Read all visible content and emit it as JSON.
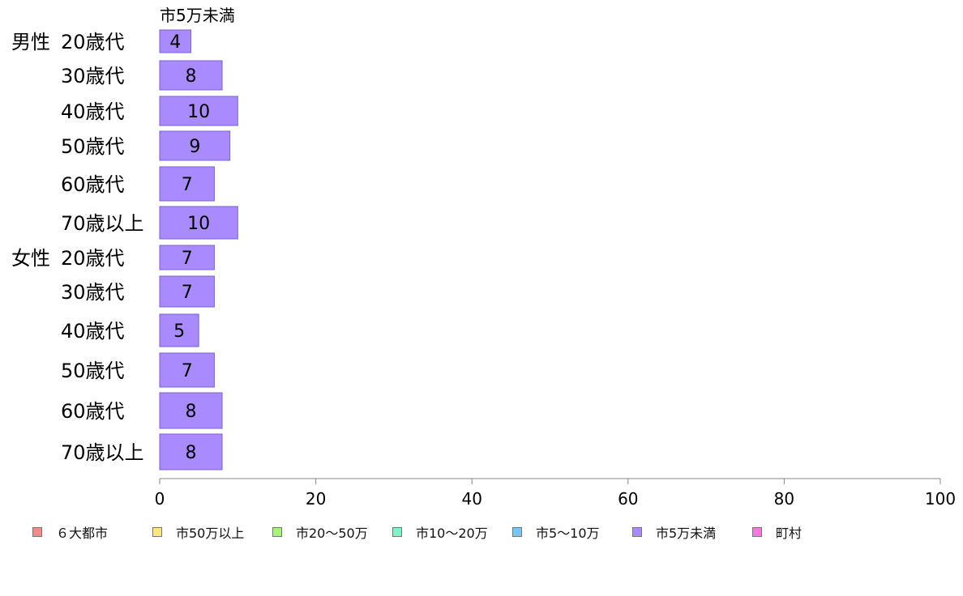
{
  "chart_data": {
    "type": "bar",
    "orientation": "horizontal",
    "series_title": "市5万未満",
    "groups": [
      {
        "group": "男性",
        "categories": [
          "20歳代",
          "30歳代",
          "40歳代",
          "50歳代",
          "60歳代",
          "70歳以上"
        ],
        "values": [
          4,
          8,
          10,
          9,
          7,
          10
        ]
      },
      {
        "group": "女性",
        "categories": [
          "20歳代",
          "30歳代",
          "40歳代",
          "50歳代",
          "60歳代",
          "70歳以上"
        ],
        "values": [
          7,
          7,
          5,
          7,
          8,
          8
        ]
      }
    ],
    "xlim": [
      0,
      100
    ],
    "xticks": [
      "0",
      "20",
      "40",
      "60",
      "80",
      "100"
    ],
    "bar_color": "#a98bff",
    "bar_edge_color": "#7b61d6",
    "grid": false,
    "legend_position": "bottom",
    "legend": [
      {
        "label": "６大都市",
        "color": "#f28b8b"
      },
      {
        "label": "市50万以上",
        "color": "#ffe680"
      },
      {
        "label": "市20～50万",
        "color": "#a6f57a"
      },
      {
        "label": "市10～20万",
        "color": "#7ef5c8"
      },
      {
        "label": "市5～10万",
        "color": "#7cc4f5"
      },
      {
        "label": "市5万未満",
        "color": "#a98bff"
      },
      {
        "label": "町村",
        "color": "#f57ae0"
      }
    ]
  }
}
